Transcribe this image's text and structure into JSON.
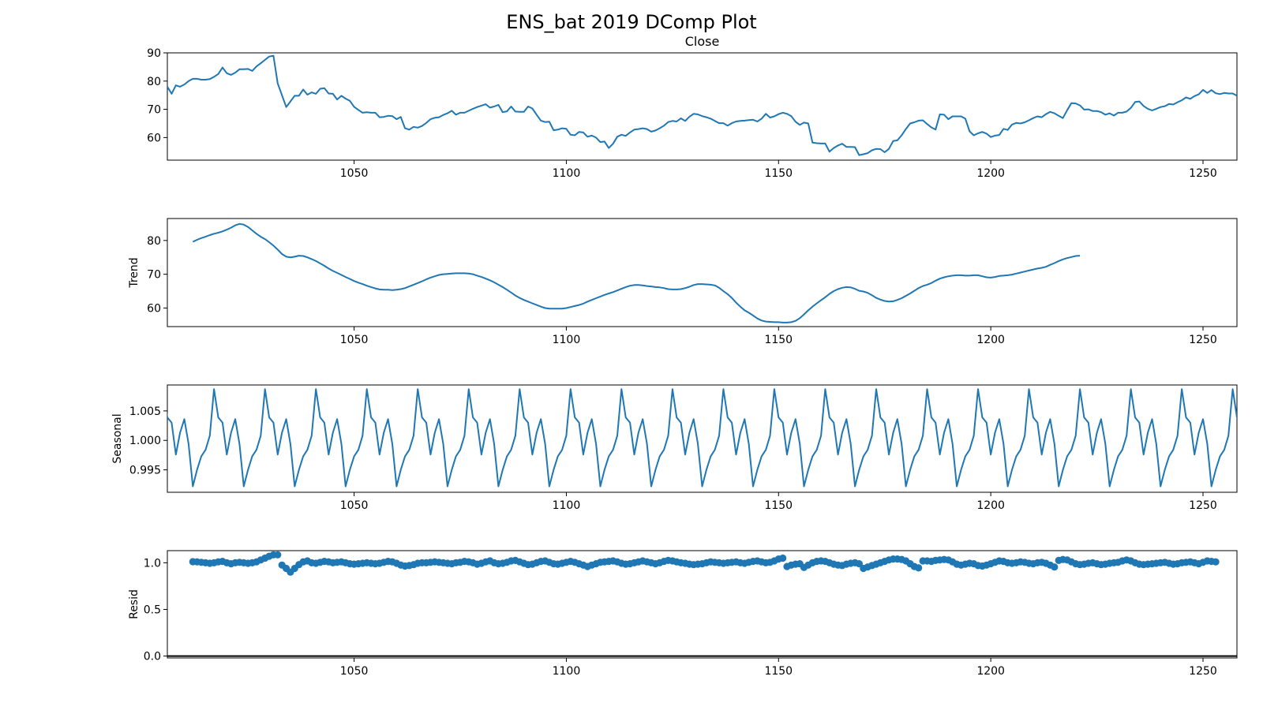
{
  "chart_data": {
    "type": "line",
    "title": "ENS_bat 2019 DComp Plot",
    "x_ticks": [
      1050,
      1100,
      1150,
      1200,
      1250
    ],
    "xlim": [
      1006,
      1258
    ],
    "line_color": "#1f77b4",
    "panels": [
      {
        "title": "Close",
        "ylabel": "",
        "style": "line",
        "ylim": [
          52,
          90
        ],
        "y_ticks": [
          60,
          70,
          80,
          90
        ],
        "x_start": 1006,
        "x_step": 1,
        "values": [
          78,
          75.5,
          78.5,
          78,
          78.8,
          80,
          80.8,
          80.8,
          80.5,
          80.5,
          80.7,
          81.5,
          82.5,
          84.8,
          82.8,
          82.2,
          83,
          84.2,
          84.2,
          84.3,
          83.6,
          85.2,
          86.3,
          87.5,
          88.7,
          89,
          79.2,
          75,
          70.8,
          72.8,
          74.8,
          74.8,
          77,
          75.2,
          76,
          75.5,
          77.3,
          77.5,
          75.6,
          75.5,
          73.5,
          74.8,
          73.8,
          73,
          70.9,
          69.8,
          68.8,
          69,
          68.8,
          68.8,
          67.2,
          67.3,
          67.7,
          67.6,
          66.5,
          67.3,
          63.3,
          62.8,
          63.8,
          63.5,
          64.1,
          65.2,
          66.5,
          67,
          67.2,
          68,
          68.6,
          69.5,
          68.1,
          68.8,
          68.8,
          69.5,
          70.2,
          70.8,
          71.3,
          71.8,
          70.6,
          71,
          71.6,
          69,
          69.3,
          71,
          69.2,
          69.1,
          69.1,
          71,
          70.3,
          68.1,
          66,
          65.5,
          65.6,
          62.6,
          62.8,
          63.3,
          63.1,
          61,
          60.8,
          62,
          61.8,
          60.3,
          60.7,
          60,
          58.4,
          58.6,
          56.3,
          57.8,
          60.3,
          61,
          60.6,
          61.8,
          62.8,
          63,
          63.3,
          63,
          62.1,
          62.5,
          63.3,
          64.2,
          65.5,
          65.9,
          65.7,
          66.8,
          65.9,
          67.4,
          68.4,
          68.2,
          67.6,
          67.2,
          66.7,
          65.9,
          65.1,
          65.1,
          64.2,
          65.1,
          65.7,
          65.9,
          66,
          66.2,
          66.3,
          65.7,
          66.7,
          68.4,
          67.1,
          67.5,
          68.3,
          68.8,
          68.4,
          67.6,
          65.6,
          64.5,
          65.3,
          65,
          58.2,
          58,
          57.9,
          57.9,
          55,
          56.3,
          57.2,
          57.8,
          56.7,
          56.7,
          56.6,
          53.8,
          54.1,
          54.5,
          55.5,
          56,
          55.9,
          54.8,
          56,
          58.8,
          59,
          60.8,
          63,
          65,
          65.4,
          66,
          66.1,
          64.8,
          63.6,
          62.8,
          68.2,
          68.1,
          66.5,
          67.5,
          67.5,
          67.5,
          66.7,
          62.2,
          60.8,
          61.5,
          62,
          61.4,
          60.2,
          60.7,
          60.9,
          63.1,
          62.7,
          64.6,
          65.2,
          65,
          65.4,
          66.1,
          66.9,
          67.5,
          67.2,
          68.3,
          69.1,
          68.6,
          67.7,
          66.9,
          69.7,
          72.2,
          72.1,
          71.4,
          69.9,
          70,
          69.4,
          69.4,
          69,
          68.1,
          68.6,
          67.8,
          68.8,
          68.8,
          69.2,
          70.5,
          72.6,
          72.8,
          71.2,
          70.2,
          69.6,
          70.2,
          70.8,
          71.1,
          71.9,
          71.7,
          72.5,
          73.2,
          74.2,
          73.7,
          74.7,
          75.3,
          76.9,
          75.8,
          76.8,
          75.7,
          75.4,
          75.8,
          75.6,
          75.6,
          74.8
        ]
      },
      {
        "title": "",
        "ylabel": "Trend",
        "style": "line",
        "ylim": [
          54.5,
          86.5
        ],
        "y_ticks": [
          60,
          70,
          80
        ],
        "x_start": 1012,
        "x_step": 1,
        "values": [
          79.6,
          80.2,
          80.7,
          81.1,
          81.6,
          82,
          82.3,
          82.7,
          83.2,
          83.8,
          84.5,
          84.9,
          84.7,
          84,
          83,
          82,
          81.1,
          80.4,
          79.5,
          78.5,
          77.3,
          76,
          75.2,
          75,
          75.2,
          75.5,
          75.4,
          75,
          74.5,
          73.9,
          73.2,
          72.5,
          71.7,
          71,
          70.4,
          69.8,
          69.2,
          68.6,
          68,
          67.5,
          67.1,
          66.6,
          66.2,
          65.8,
          65.5,
          65.4,
          65.4,
          65.3,
          65.4,
          65.6,
          65.9,
          66.4,
          66.9,
          67.4,
          67.9,
          68.5,
          69,
          69.4,
          69.8,
          70,
          70.1,
          70.2,
          70.3,
          70.3,
          70.3,
          70.2,
          70,
          69.6,
          69.2,
          68.7,
          68.2,
          67.6,
          66.9,
          66.2,
          65.4,
          64.6,
          63.7,
          63,
          62.4,
          61.9,
          61.4,
          60.9,
          60.4,
          60,
          59.8,
          59.8,
          59.8,
          59.8,
          60,
          60.3,
          60.6,
          60.9,
          61.3,
          61.9,
          62.4,
          62.9,
          63.4,
          63.9,
          64.3,
          64.7,
          65.2,
          65.7,
          66.2,
          66.6,
          66.8,
          66.8,
          66.7,
          66.5,
          66.4,
          66.2,
          66.1,
          65.9,
          65.6,
          65.5,
          65.5,
          65.6,
          65.9,
          66.3,
          66.8,
          67.1,
          67.1,
          67,
          66.9,
          66.7,
          66,
          65,
          64.1,
          63,
          61.6,
          60.4,
          59.3,
          58.6,
          57.8,
          56.9,
          56.3,
          56,
          55.9,
          55.8,
          55.8,
          55.7,
          55.7,
          55.8,
          56.2,
          57,
          58.1,
          59.3,
          60.4,
          61.4,
          62.3,
          63.2,
          64.2,
          65,
          65.6,
          66,
          66.2,
          66.1,
          65.7,
          65.1,
          64.9,
          64.5,
          63.8,
          63,
          62.5,
          62.1,
          61.9,
          62,
          62.4,
          62.9,
          63.6,
          64.3,
          65.1,
          65.9,
          66.5,
          66.9,
          67.4,
          68.1,
          68.7,
          69.1,
          69.4,
          69.6,
          69.7,
          69.7,
          69.6,
          69.6,
          69.7,
          69.7,
          69.4,
          69.1,
          69,
          69.2,
          69.5,
          69.6,
          69.7,
          69.9,
          70.2,
          70.5,
          70.8,
          71.1,
          71.4,
          71.7,
          71.9,
          72.2,
          72.8,
          73.3,
          73.9,
          74.4,
          74.8,
          75.1,
          75.4,
          75.5
        ]
      },
      {
        "title": "",
        "ylabel": "Seasonal",
        "style": "line",
        "ylim": [
          0.9912,
          1.0094
        ],
        "y_ticks": [
          0.995,
          1.0,
          1.005
        ],
        "y_tick_labels": [
          "0.995",
          "1.000",
          "1.005"
        ],
        "period": 12,
        "pattern_x_start": 1005,
        "pattern": [
          1.0087,
          1.0039,
          1.003,
          0.9976,
          1.0013,
          1.0036,
          0.9994,
          0.9922,
          0.995,
          0.9973,
          0.9984,
          1.0008
        ]
      },
      {
        "title": "",
        "ylabel": "Resid",
        "style": "scatter",
        "ylim": [
          -0.02,
          1.13
        ],
        "y_ticks": [
          0.0,
          0.5,
          1.0
        ],
        "y_tick_labels": [
          "0.0",
          "0.5",
          "1.0"
        ],
        "hline": 0,
        "x_start": 1012,
        "x_step": 1,
        "values": [
          1.012,
          1.01,
          1.005,
          1.0,
          0.995,
          1.0,
          1.01,
          1.015,
          1.0,
          0.99,
          1.0,
          1.005,
          1.0,
          0.995,
          1.0,
          1.01,
          1.03,
          1.05,
          1.07,
          1.085,
          1.085,
          0.975,
          0.94,
          0.9,
          0.94,
          0.98,
          1.01,
          1.02,
          1.0,
          0.995,
          1.005,
          1.015,
          1.01,
          1.0,
          1.005,
          1.01,
          1.0,
          0.99,
          0.985,
          0.99,
          0.995,
          1.0,
          0.995,
          0.99,
          0.995,
          1.005,
          1.015,
          1.01,
          0.995,
          0.975,
          0.965,
          0.97,
          0.98,
          0.995,
          1.0,
          1.0,
          1.005,
          1.01,
          1.005,
          1.0,
          0.995,
          0.99,
          1.0,
          1.005,
          1.015,
          1.01,
          1.0,
          0.985,
          0.995,
          1.01,
          1.02,
          1.0,
          0.99,
          0.995,
          1.005,
          1.02,
          1.025,
          1.01,
          0.995,
          0.98,
          0.985,
          1.0,
          1.015,
          1.02,
          1.005,
          0.99,
          0.985,
          0.995,
          1.005,
          1.015,
          1.005,
          0.99,
          0.975,
          0.96,
          0.975,
          0.99,
          1.005,
          1.01,
          1.015,
          1.02,
          1.01,
          0.995,
          0.985,
          0.99,
          1.0,
          1.01,
          1.02,
          1.01,
          1.0,
          0.99,
          1.0,
          1.015,
          1.025,
          1.02,
          1.01,
          1.0,
          0.995,
          0.985,
          0.98,
          0.985,
          0.99,
          1.0,
          1.01,
          1.005,
          1.0,
          0.995,
          1.0,
          1.005,
          1.01,
          1.0,
          0.995,
          1.005,
          1.015,
          1.02,
          1.01,
          1.0,
          1.005,
          1.02,
          1.04,
          1.05,
          0.96,
          0.975,
          0.985,
          0.99,
          0.95,
          0.975,
          1.0,
          1.015,
          1.02,
          1.015,
          1.0,
          0.985,
          0.975,
          0.97,
          0.985,
          0.995,
          1.0,
          0.99,
          0.94,
          0.955,
          0.97,
          0.985,
          1.0,
          1.015,
          1.03,
          1.04,
          1.04,
          1.035,
          1.02,
          0.99,
          0.96,
          0.945,
          1.02,
          1.02,
          1.015,
          1.025,
          1.03,
          1.035,
          1.03,
          1.01,
          0.985,
          0.975,
          0.985,
          0.995,
          0.99,
          0.97,
          0.965,
          0.975,
          0.99,
          1.005,
          1.02,
          1.015,
          1.0,
          0.995,
          1.0,
          1.01,
          1.005,
          0.995,
          0.99,
          1.0,
          1.005,
          0.995,
          0.975,
          0.955,
          1.025,
          1.035,
          1.03,
          1.01,
          0.99,
          0.98,
          0.985,
          0.995,
          1.0,
          0.99,
          0.98,
          0.985,
          0.995,
          1.0,
          1.005,
          1.02,
          1.03,
          1.02,
          1.0,
          0.985,
          0.98,
          0.985,
          0.99,
          0.995,
          1.0,
          1.005,
          0.995,
          0.985,
          0.99,
          1.0,
          1.005,
          1.01,
          1.0,
          0.99,
          1.005,
          1.02,
          1.015,
          1.01
        ]
      }
    ]
  }
}
